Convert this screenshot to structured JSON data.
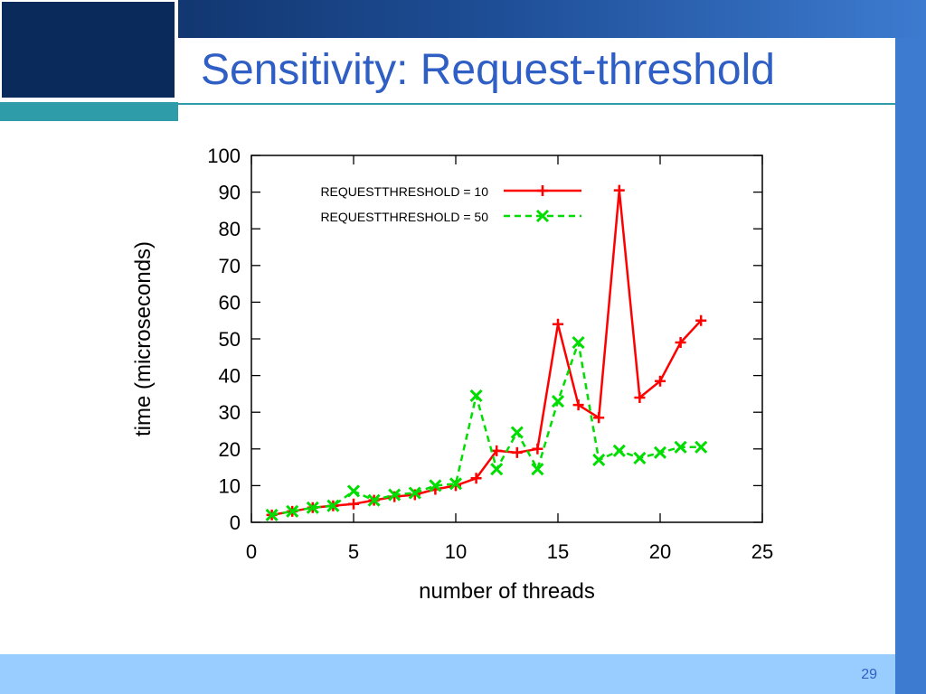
{
  "slide": {
    "title": "Sensitivity: Request-threshold",
    "page_number": "29"
  },
  "colors": {
    "series_1": "#ff0000",
    "series_2": "#00dd00",
    "title": "#2f5fc4"
  },
  "chart_data": {
    "type": "line",
    "title": "",
    "xlabel": "number of threads",
    "ylabel": "time (microseconds)",
    "xlim": [
      0,
      25
    ],
    "ylim": [
      0,
      100
    ],
    "xticks": [
      "0",
      "5",
      "10",
      "15",
      "20",
      "25"
    ],
    "yticks": [
      "0",
      "10",
      "20",
      "30",
      "40",
      "50",
      "60",
      "70",
      "80",
      "90",
      "100"
    ],
    "grid": false,
    "legend_position": "top-left",
    "series": [
      {
        "name": "REQUESTTHRESHOLD = 10",
        "line_style": "solid",
        "marker": "plus",
        "x": [
          1,
          2,
          3,
          4,
          5,
          6,
          7,
          8,
          9,
          10,
          11,
          12,
          13,
          14,
          15,
          16,
          17,
          18,
          19,
          20,
          21,
          22
        ],
        "y": [
          2,
          3,
          4,
          4.5,
          5,
          6,
          7,
          7.5,
          9,
          10,
          12,
          19.5,
          19,
          20,
          54,
          32,
          28.5,
          90.5,
          34,
          38.5,
          49,
          55
        ]
      },
      {
        "name": "REQUESTTHRESHOLD = 50",
        "line_style": "dashed",
        "marker": "cross",
        "x": [
          1,
          2,
          3,
          4,
          5,
          6,
          7,
          8,
          9,
          10,
          11,
          12,
          13,
          14,
          15,
          16,
          17,
          18,
          19,
          20,
          21,
          22
        ],
        "y": [
          2,
          3,
          4,
          4.5,
          8.5,
          6,
          7.5,
          8,
          10,
          10.5,
          34.5,
          14.5,
          24.5,
          14.5,
          33,
          49,
          17,
          19.5,
          17.5,
          19,
          20.5,
          20.5
        ]
      }
    ]
  }
}
